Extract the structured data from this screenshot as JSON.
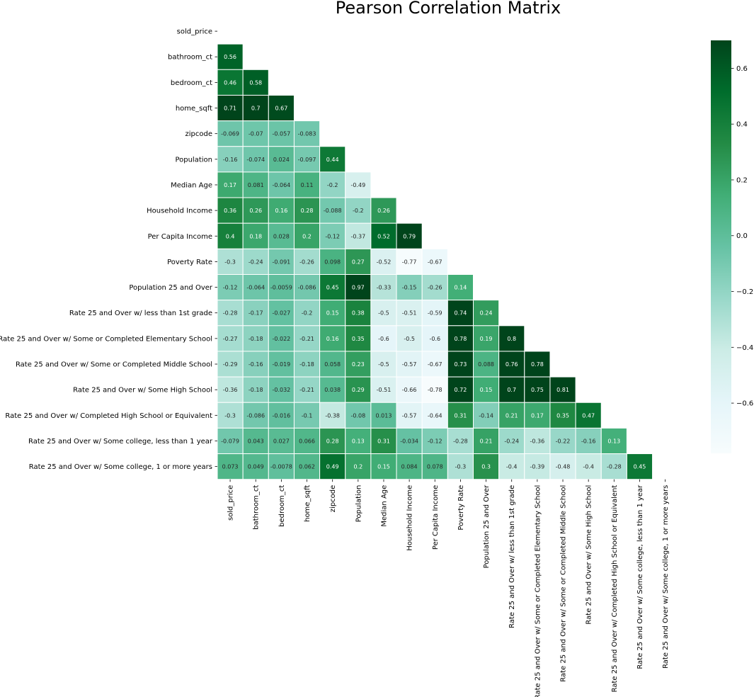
{
  "chart_data": {
    "type": "heatmap",
    "title": "Pearson Correlation Matrix",
    "variables": [
      "sold_price",
      "bathroom_ct",
      "bedroom_ct",
      "home_sqft",
      "zipcode",
      "Population",
      "Median Age",
      "Household Income",
      "Per Capita Income",
      "Poverty Rate",
      "Population 25 and Over",
      "Rate 25 and Over w/ less than 1st grade",
      "Rate 25 and Over w/ Some or Completed Elementary School",
      "Rate 25 and Over w/ Some or Completed Middle School",
      "Rate 25 and Over w/ Some High School",
      "Rate 25 and Over w/ Completed High School or Equivalent",
      "Rate 25 and Over w/ Some college, less than 1 year",
      "Rate 25 and Over w/ Some college, 1 or more years"
    ],
    "mask": "upper-triangle-including-diagonal",
    "lower_triangle": [
      [],
      [
        "0.56"
      ],
      [
        "0.46",
        "0.58"
      ],
      [
        "0.71",
        "0.7",
        "0.67"
      ],
      [
        "-0.069",
        "-0.07",
        "-0.057",
        "-0.083"
      ],
      [
        "-0.16",
        "-0.074",
        "0.024",
        "-0.097",
        "0.44"
      ],
      [
        "0.17",
        "0.081",
        "-0.064",
        "0.11",
        "-0.2",
        "-0.49"
      ],
      [
        "0.36",
        "0.26",
        "0.16",
        "0.28",
        "-0.088",
        "-0.2",
        "0.26"
      ],
      [
        "0.4",
        "0.18",
        "0.028",
        "0.2",
        "-0.12",
        "-0.37",
        "0.52",
        "0.79"
      ],
      [
        "-0.3",
        "-0.24",
        "-0.091",
        "-0.26",
        "0.098",
        "0.27",
        "-0.52",
        "-0.77",
        "-0.67"
      ],
      [
        "-0.12",
        "-0.064",
        "-0.0059",
        "-0.086",
        "0.45",
        "0.97",
        "-0.33",
        "-0.15",
        "-0.26",
        "0.14"
      ],
      [
        "-0.28",
        "-0.17",
        "-0.027",
        "-0.2",
        "0.15",
        "0.38",
        "-0.5",
        "-0.51",
        "-0.59",
        "0.74",
        "0.24"
      ],
      [
        "-0.27",
        "-0.18",
        "-0.022",
        "-0.21",
        "0.16",
        "0.35",
        "-0.6",
        "-0.5",
        "-0.6",
        "0.78",
        "0.19",
        "0.8"
      ],
      [
        "-0.29",
        "-0.16",
        "-0.019",
        "-0.18",
        "0.058",
        "0.23",
        "-0.5",
        "-0.57",
        "-0.67",
        "0.73",
        "0.088",
        "0.76",
        "0.78"
      ],
      [
        "-0.36",
        "-0.18",
        "-0.032",
        "-0.21",
        "0.038",
        "0.29",
        "-0.51",
        "-0.66",
        "-0.78",
        "0.72",
        "0.15",
        "0.7",
        "0.75",
        "0.81"
      ],
      [
        "-0.3",
        "-0.086",
        "-0.016",
        "-0.1",
        "-0.38",
        "-0.08",
        "0.013",
        "-0.57",
        "-0.64",
        "0.31",
        "-0.14",
        "0.21",
        "0.17",
        "0.35",
        "0.47"
      ],
      [
        "-0.079",
        "0.043",
        "0.027",
        "0.066",
        "0.28",
        "0.13",
        "0.31",
        "-0.034",
        "-0.12",
        "-0.28",
        "0.21",
        "-0.24",
        "-0.36",
        "-0.22",
        "-0.16",
        "0.13"
      ],
      [
        "0.073",
        "0.049",
        "-0.0078",
        "0.062",
        "0.49",
        "0.2",
        "0.15",
        "0.084",
        "0.078",
        "-0.3",
        "0.3",
        "-0.4",
        "-0.39",
        "-0.48",
        "-0.4",
        "-0.28",
        "0.45"
      ]
    ],
    "color_scale": {
      "name": "BuGn",
      "vmin": -0.78,
      "vmax": 0.7,
      "ticks": [
        "0.6",
        "0.4",
        "0.2",
        "0.0",
        "−0.2",
        "−0.4",
        "−0.6"
      ],
      "tick_values": [
        0.6,
        0.4,
        0.2,
        0.0,
        -0.2,
        -0.4,
        -0.6
      ],
      "stops": [
        "#f7fcfd",
        "#e5f5f9",
        "#ccece6",
        "#99d8c9",
        "#66c2a4",
        "#41ae76",
        "#238b45",
        "#006d2c",
        "#00441b"
      ]
    },
    "colorbar_placement": "right"
  }
}
